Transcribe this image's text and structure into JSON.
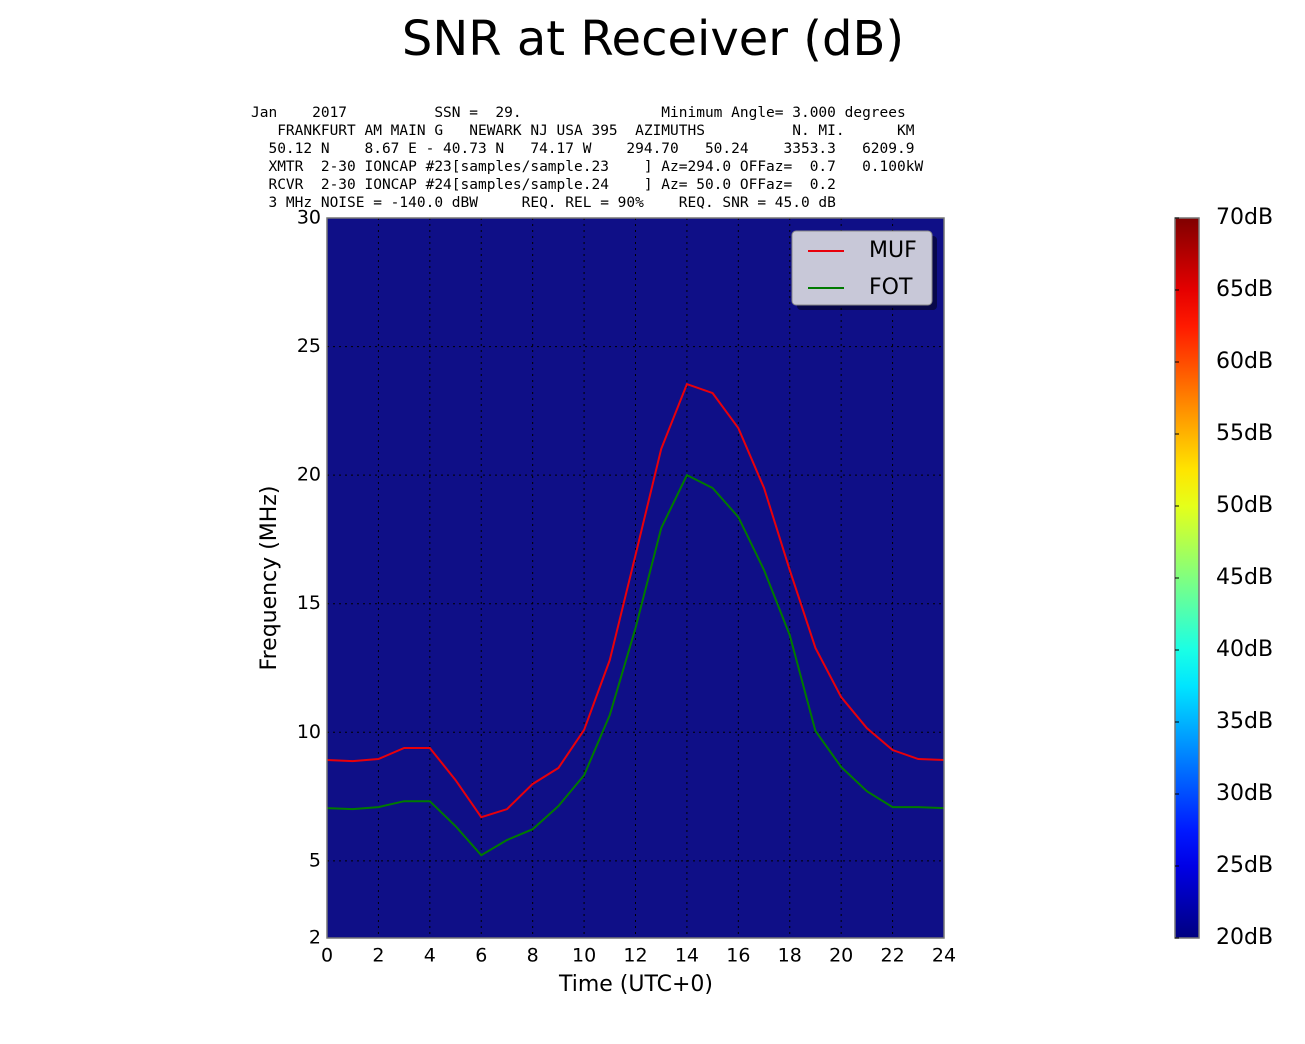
{
  "chart_data": {
    "type": "line",
    "title": "SNR at Receiver (dB)",
    "header_lines": [
      "Jan    2017          SSN =  29.                Minimum Angle= 3.000 degrees",
      "   FRANKFURT AM MAIN G   NEWARK NJ USA 395  AZIMUTHS          N. MI.      KM",
      "  50.12 N    8.67 E - 40.73 N   74.17 W    294.70   50.24    3353.3   6209.9",
      "  XMTR  2-30 IONCAP #23[samples/sample.23    ] Az=294.0 OFFaz=  0.7   0.100kW",
      "  RCVR  2-30 IONCAP #24[samples/sample.24    ] Az= 50.0 OFFaz=  0.2",
      "  3 MHz NOISE = -140.0 dBW     REQ. REL = 90%    REQ. SNR = 45.0 dB"
    ],
    "x_label": "Time (UTC+0)",
    "y_label": "Frequency (MHz)",
    "x": [
      0,
      1,
      2,
      3,
      4,
      5,
      6,
      7,
      8,
      9,
      10,
      11,
      12,
      13,
      14,
      15,
      16,
      17,
      18,
      19,
      20,
      21,
      22,
      23,
      24
    ],
    "series": [
      {
        "name": "MUF",
        "color": "#e8000b",
        "values": [
          8.92,
          8.88,
          8.96,
          9.39,
          9.39,
          8.14,
          6.7,
          7.01,
          7.99,
          8.61,
          10.09,
          12.81,
          16.89,
          21.02,
          23.54,
          23.19,
          21.83,
          19.5,
          16.31,
          13.28,
          11.37,
          10.16,
          9.31,
          8.96,
          8.92
        ]
      },
      {
        "name": "FOT",
        "color": "#007a00",
        "values": [
          7.05,
          7.01,
          7.09,
          7.32,
          7.32,
          6.35,
          5.22,
          5.81,
          6.23,
          7.13,
          8.33,
          10.67,
          14.05,
          17.94,
          20.0,
          19.5,
          18.37,
          16.31,
          13.78,
          10.05,
          8.65,
          7.71,
          7.09,
          7.09,
          7.05
        ]
      }
    ],
    "xlim": [
      0,
      24
    ],
    "xticks": [
      0,
      2,
      4,
      6,
      8,
      10,
      12,
      14,
      16,
      18,
      20,
      22,
      24
    ],
    "ylim": [
      2,
      30
    ],
    "yticks": [
      2,
      5,
      10,
      15,
      20,
      25,
      30
    ],
    "grid": true,
    "legend": "upper right",
    "background_color": "#0f0f87",
    "colormap": "jet",
    "colorbar": {
      "lim": [
        20,
        70
      ],
      "ticks": [
        {
          "value": 20,
          "label": "20dB"
        },
        {
          "value": 25,
          "label": "25dB"
        },
        {
          "value": 30,
          "label": "30dB"
        },
        {
          "value": 35,
          "label": "35dB"
        },
        {
          "value": 40,
          "label": "40dB"
        },
        {
          "value": 45,
          "label": "45dB"
        },
        {
          "value": 50,
          "label": "50dB"
        },
        {
          "value": 55,
          "label": "55dB"
        },
        {
          "value": 60,
          "label": "60dB"
        },
        {
          "value": 65,
          "label": "65dB"
        },
        {
          "value": 70,
          "label": "70dB"
        }
      ]
    }
  }
}
